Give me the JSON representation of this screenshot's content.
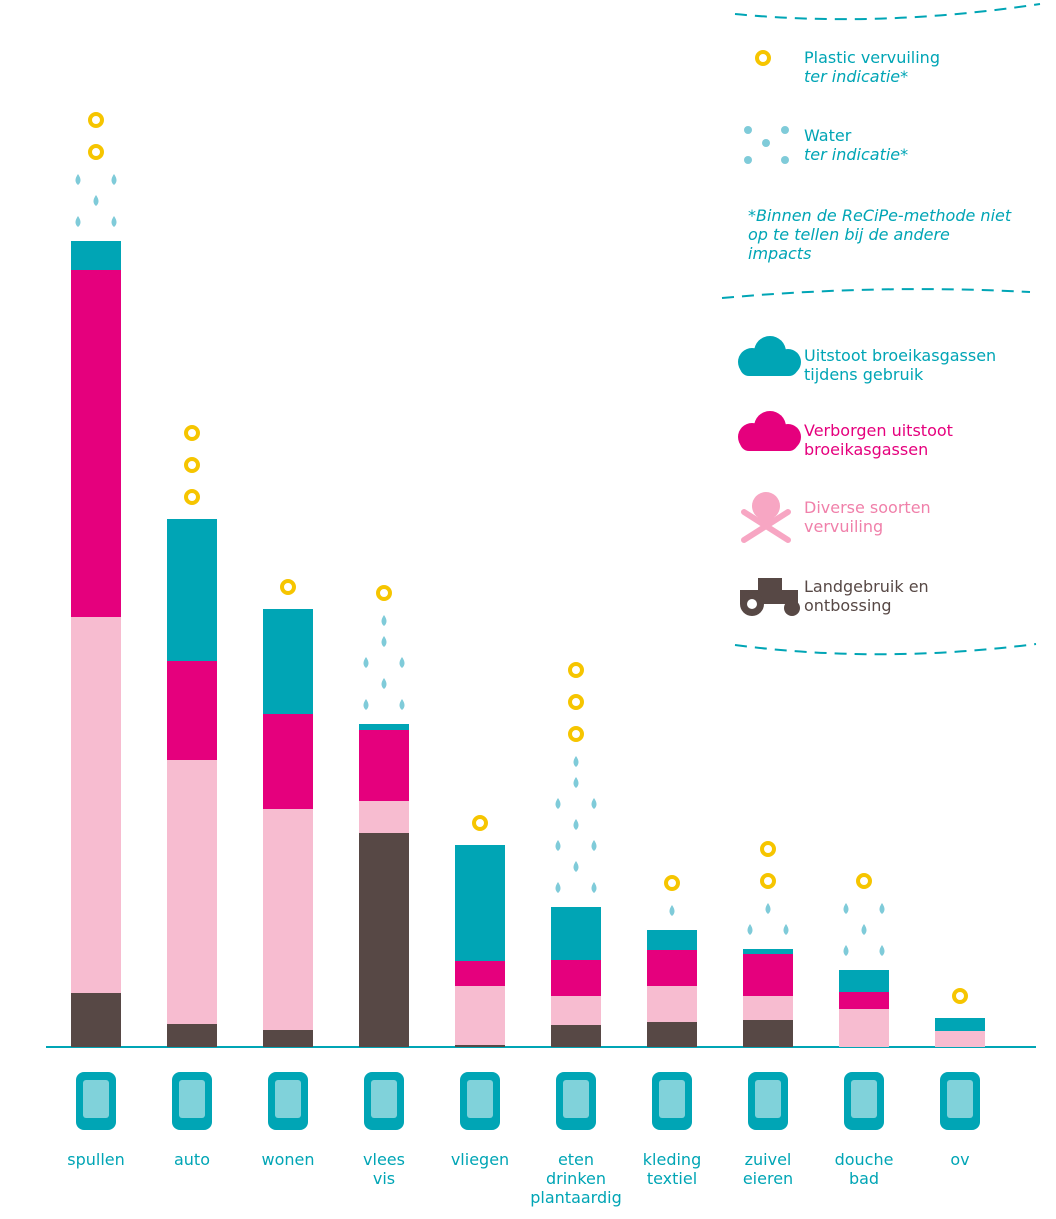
{
  "chart_data": {
    "type": "stacked_bar",
    "categories": [
      "spullen",
      "auto",
      "wonen",
      "vlees\nvis",
      "vliegen",
      "eten\ndrinken\nplantaardig",
      "kleding\ntextiel",
      "zuivel\neieren",
      "douche\nbad",
      "ov"
    ],
    "series": [
      {
        "name": "Landgebruik en\nontbossing",
        "color": "#574845",
        "values": [
          54,
          23,
          17,
          214,
          2,
          22,
          25,
          27,
          0,
          0
        ]
      },
      {
        "name": "Diverse soorten\nvervuiling",
        "color": "#f7bcd0",
        "values": [
          376,
          264,
          221,
          32,
          59,
          29,
          36,
          24,
          38,
          16
        ]
      },
      {
        "name": "Verborgen uitstoot\nbroeikasgassen",
        "color": "#e5007d",
        "values": [
          347,
          99,
          95,
          71,
          25,
          36,
          36,
          42,
          17,
          0
        ]
      },
      {
        "name": "Uitstoot broeikasgassen\ntijdens gebruik",
        "color": "#00a5b5",
        "values": [
          29,
          142,
          105,
          6,
          116,
          53,
          20,
          5,
          22,
          13
        ]
      }
    ],
    "indicators": [
      {
        "name": "Plastic vervuiling",
        "note": "ter indicatie*",
        "color": "#f6c500",
        "values": [
          2,
          3,
          1,
          1,
          1,
          3,
          1,
          2,
          1,
          1
        ]
      },
      {
        "name": "Water",
        "note": "ter indicatie*",
        "color": "#7fcbd9",
        "values": [
          5,
          0,
          0,
          7,
          0,
          10,
          1,
          3,
          5,
          0
        ]
      }
    ],
    "footnote": "*Binnen de ReCiPe-methode niet op te tellen bij de andere impacts"
  }
}
